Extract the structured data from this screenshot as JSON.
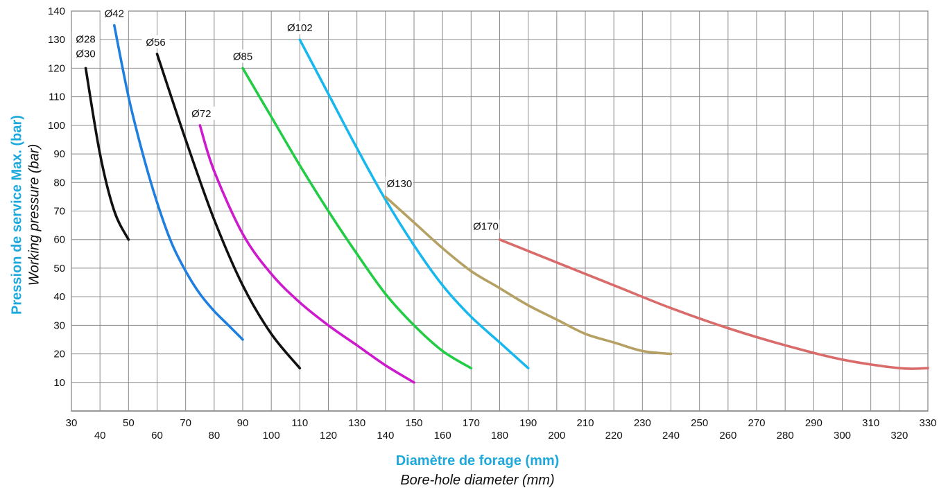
{
  "chart_data": {
    "type": "line",
    "ylabel": "Pression de service Max. (bar)",
    "ylabel_en": "Working pressure (bar)",
    "xlabel": "Diamètre de forage (mm)",
    "xlabel_en": "Bore-hole diameter (mm)",
    "xlim": [
      30,
      330
    ],
    "ylim": [
      0,
      140
    ],
    "grid": true,
    "x_ticks": [
      30,
      40,
      50,
      60,
      70,
      80,
      90,
      100,
      110,
      120,
      130,
      140,
      150,
      160,
      170,
      180,
      190,
      200,
      210,
      220,
      230,
      240,
      250,
      260,
      270,
      280,
      290,
      300,
      310,
      320,
      330
    ],
    "y_ticks": [
      10,
      20,
      30,
      40,
      50,
      60,
      70,
      80,
      90,
      100,
      110,
      120,
      130,
      140
    ],
    "series": [
      {
        "name": "Ø30",
        "label_extra": "Ø28",
        "color": "#111111",
        "x": [
          35,
          40,
          45,
          50
        ],
        "y": [
          120,
          90,
          70,
          60
        ]
      },
      {
        "name": "Ø42",
        "color": "#1f7fe0",
        "x": [
          45,
          50,
          55,
          60,
          65,
          70,
          75,
          80,
          85,
          90
        ],
        "y": [
          135,
          110,
          90,
          73,
          59,
          49,
          41,
          35,
          30,
          25
        ]
      },
      {
        "name": "Ø56",
        "color": "#111111",
        "x": [
          60,
          70,
          80,
          90,
          100,
          110
        ],
        "y": [
          125,
          95,
          67,
          44,
          27,
          15
        ]
      },
      {
        "name": "Ø72",
        "color": "#cc1acc",
        "x": [
          75,
          80,
          90,
          100,
          110,
          120,
          130,
          140,
          150
        ],
        "y": [
          100,
          84,
          62,
          48,
          38,
          30,
          23,
          16,
          10
        ]
      },
      {
        "name": "Ø85",
        "color": "#22cc44",
        "x": [
          90,
          100,
          110,
          120,
          130,
          140,
          150,
          160,
          170
        ],
        "y": [
          120,
          103,
          86,
          70,
          55,
          41,
          30,
          21,
          15
        ]
      },
      {
        "name": "Ø102",
        "color": "#18b8ee",
        "x": [
          110,
          120,
          130,
          140,
          150,
          160,
          170,
          180,
          190
        ],
        "y": [
          130,
          111,
          92,
          74,
          58,
          44,
          33,
          24,
          15
        ]
      },
      {
        "name": "Ø130",
        "color": "#b5a164",
        "x": [
          140,
          150,
          160,
          170,
          180,
          190,
          200,
          210,
          220,
          230,
          240
        ],
        "y": [
          75,
          66,
          57,
          49,
          43,
          37,
          32,
          27,
          24,
          21,
          20
        ]
      },
      {
        "name": "Ø170",
        "color": "#d96b6b",
        "x": [
          180,
          200,
          220,
          240,
          260,
          280,
          300,
          320,
          330
        ],
        "y": [
          60,
          52,
          44,
          36,
          29,
          23,
          18,
          15,
          15
        ]
      }
    ]
  }
}
